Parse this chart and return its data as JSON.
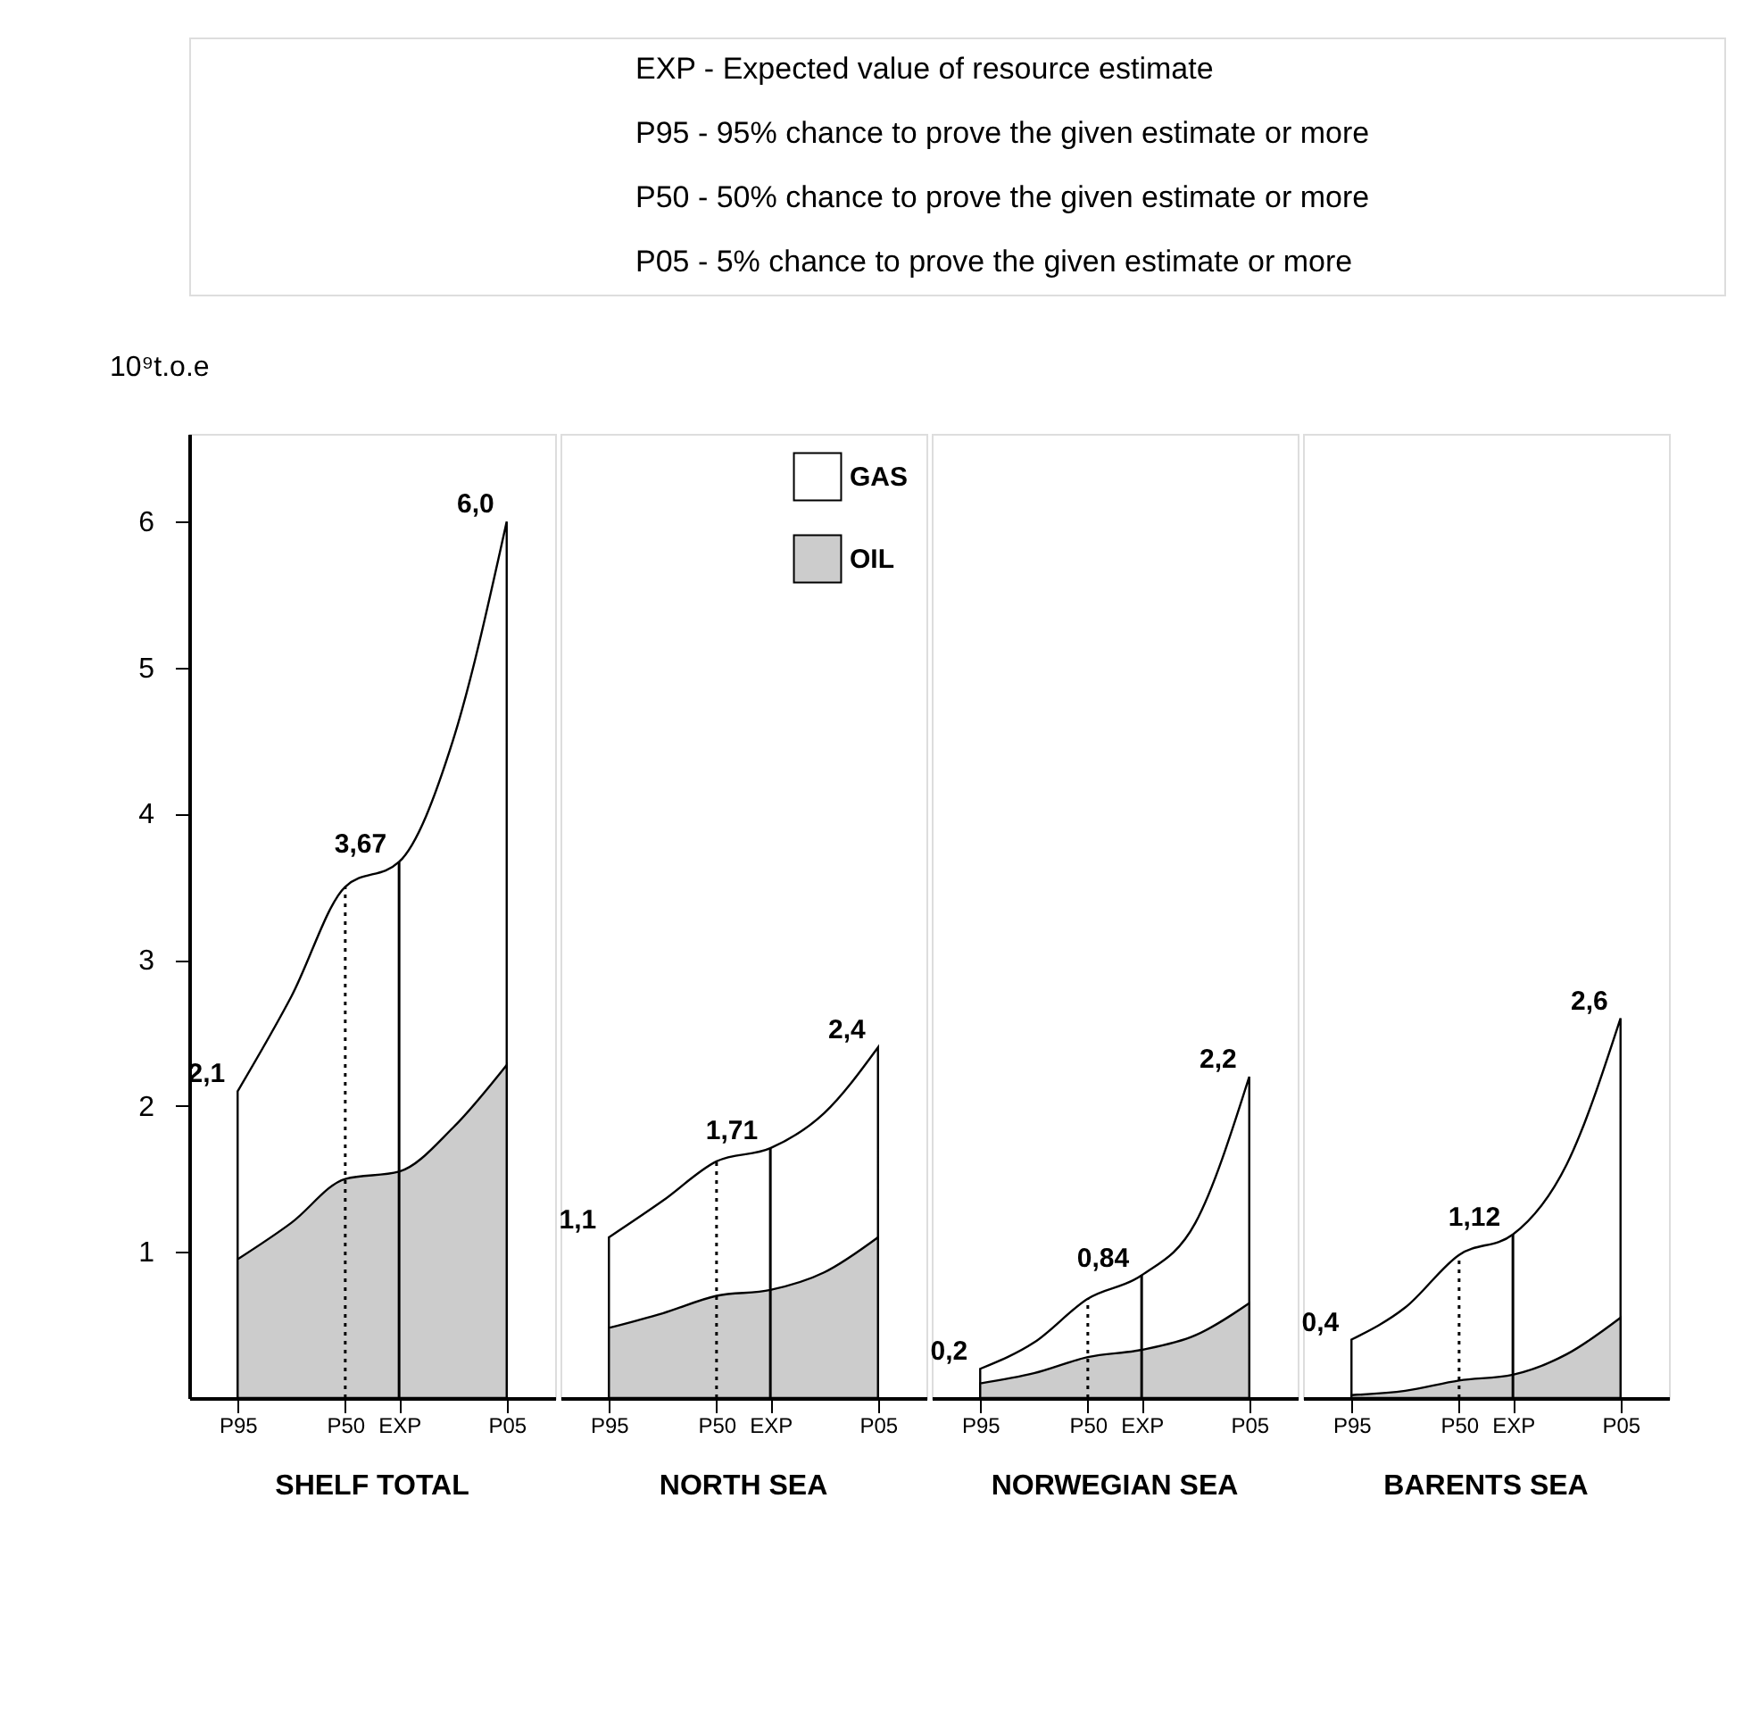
{
  "chart_data": [
    {
      "type": "other",
      "annotations": [
        "EXP -  Expected value of resource estimate",
        "P95 -  95% chance to prove the given estimate or more",
        "P50 -  50% chance to prove the given estimate or more",
        "P05 -  5% chance to prove the given estimate or more"
      ]
    },
    {
      "type": "area",
      "title": "SHELF TOTAL",
      "ylabel": "10⁹t.o.e",
      "categories": [
        "P95",
        null,
        "P50",
        "EXP",
        null,
        "P05"
      ],
      "ylim": [
        0,
        6.6
      ],
      "yticks": [
        1,
        2,
        3,
        4,
        5,
        6
      ],
      "series": [
        {
          "color": "#ffffff",
          "values": [
            2.1,
            2.75,
            3.5,
            3.67,
            4.5,
            6.0
          ],
          "value_labels": [
            "2,1",
            null,
            null,
            "3,67",
            null,
            "6,0"
          ]
        },
        {
          "color": "#cccccc",
          "values": [
            0.95,
            1.2,
            1.5,
            1.55,
            1.85,
            2.28
          ]
        }
      ],
      "ref_lines": [
        {
          "axis": "x",
          "value": "P50",
          "line_style": "dotted"
        },
        {
          "axis": "x",
          "value": "EXP",
          "line_style": "solid"
        }
      ]
    },
    {
      "type": "area",
      "title": "NORTH SEA",
      "categories": [
        "P95",
        null,
        "P50",
        "EXP",
        null,
        "P05"
      ],
      "ylim": [
        0,
        6.6
      ],
      "tick_labels": "x",
      "legend": "top right",
      "series": [
        {
          "name": "GAS",
          "color": "#ffffff",
          "values": [
            1.1,
            1.35,
            1.62,
            1.71,
            1.95,
            2.4
          ],
          "value_labels": [
            "1,1",
            null,
            null,
            "1,71",
            null,
            "2,4"
          ]
        },
        {
          "name": "OIL",
          "color": "#cccccc",
          "values": [
            0.48,
            0.58,
            0.7,
            0.74,
            0.86,
            1.1
          ]
        }
      ],
      "ref_lines": [
        {
          "axis": "x",
          "value": "P50",
          "line_style": "dotted"
        },
        {
          "axis": "x",
          "value": "EXP",
          "line_style": "solid"
        }
      ]
    },
    {
      "type": "area",
      "title": "NORWEGIAN SEA",
      "categories": [
        "P95",
        null,
        "P50",
        "EXP",
        null,
        "P05"
      ],
      "ylim": [
        0,
        6.6
      ],
      "tick_labels": "x",
      "series": [
        {
          "color": "#ffffff",
          "values": [
            0.2,
            0.38,
            0.68,
            0.84,
            1.2,
            2.2
          ],
          "value_labels": [
            "0,2",
            null,
            null,
            "0,84",
            null,
            "2,2"
          ]
        },
        {
          "color": "#cccccc",
          "values": [
            0.1,
            0.17,
            0.28,
            0.33,
            0.43,
            0.65
          ]
        }
      ],
      "ref_lines": [
        {
          "axis": "x",
          "value": "P50",
          "line_style": "dotted"
        },
        {
          "axis": "x",
          "value": "EXP",
          "line_style": "solid"
        }
      ]
    },
    {
      "type": "area",
      "title": "BARENTS SEA",
      "categories": [
        "P95",
        null,
        "P50",
        "EXP",
        null,
        "P05"
      ],
      "ylim": [
        0,
        6.6
      ],
      "tick_labels": "x",
      "series": [
        {
          "color": "#ffffff",
          "values": [
            0.4,
            0.62,
            0.98,
            1.12,
            1.6,
            2.6
          ],
          "value_labels": [
            "0,4",
            null,
            null,
            "1,12",
            null,
            "2,6"
          ]
        },
        {
          "color": "#cccccc",
          "values": [
            0.02,
            0.05,
            0.12,
            0.16,
            0.3,
            0.55
          ]
        }
      ],
      "ref_lines": [
        {
          "axis": "x",
          "value": "P50",
          "line_style": "dotted"
        },
        {
          "axis": "x",
          "value": "EXP",
          "line_style": "solid"
        }
      ]
    }
  ]
}
